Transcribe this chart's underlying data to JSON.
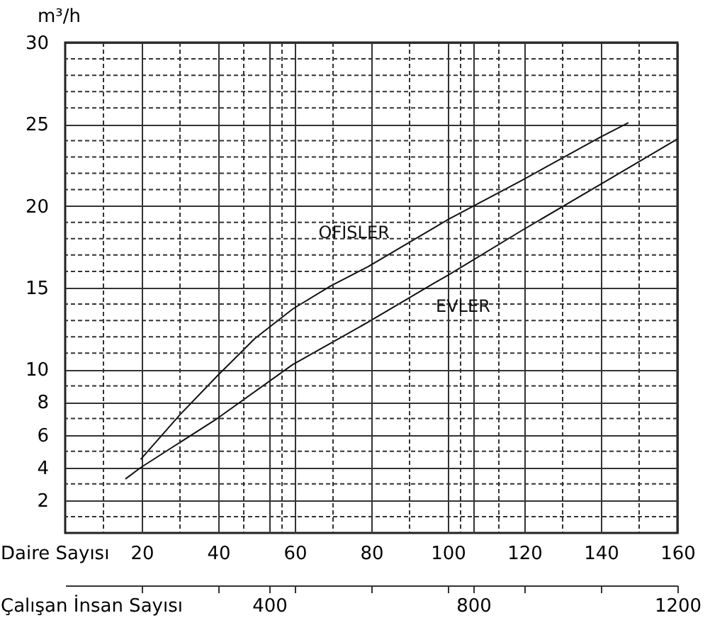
{
  "chart_data": {
    "type": "line",
    "ylabel": "m³/h",
    "xlabel": "Çalışan İnsan Sayısı",
    "x2label": "Daire Sayısı",
    "xlim": [
      0,
      1200
    ],
    "xticks": [
      {
        "value": 150,
        "label": null
      },
      {
        "value": 300,
        "label": null
      },
      {
        "value": 400,
        "label": "400"
      },
      {
        "value": 450,
        "label": null
      },
      {
        "value": 600,
        "label": null
      },
      {
        "value": 750,
        "label": null
      },
      {
        "value": 800,
        "label": "800"
      },
      {
        "value": 900,
        "label": null
      },
      {
        "value": 1050,
        "label": null
      },
      1200
    ],
    "x2lim": [
      0,
      160
    ],
    "x2ticks": [
      20,
      40,
      60,
      80,
      100,
      120,
      140,
      160
    ],
    "ylim": [
      0,
      30
    ],
    "yticks": [
      2,
      4,
      6,
      8,
      10,
      15,
      20,
      25,
      30
    ],
    "grid": true,
    "line_style": "solid",
    "marker": "none",
    "series": [
      {
        "name": "OFİSLER",
        "color": "#111111",
        "x": [
          148,
          224,
          298,
          372,
          446,
          520,
          594,
          752,
          891,
          1048,
          1104
        ],
        "values": [
          4.5,
          7.2,
          9.6,
          11.9,
          13.7,
          15.1,
          16.3,
          19.2,
          21.5,
          24.2,
          25.1
        ]
      },
      {
        "name": "EVLER",
        "color": "#111111",
        "x": [
          118,
          148,
          298,
          446,
          594,
          724,
          752,
          895,
          1048,
          1200
        ],
        "values": [
          3.3,
          4.0,
          7.0,
          10.3,
          12.9,
          15.3,
          15.8,
          18.5,
          21.3,
          24.1
        ]
      }
    ]
  }
}
